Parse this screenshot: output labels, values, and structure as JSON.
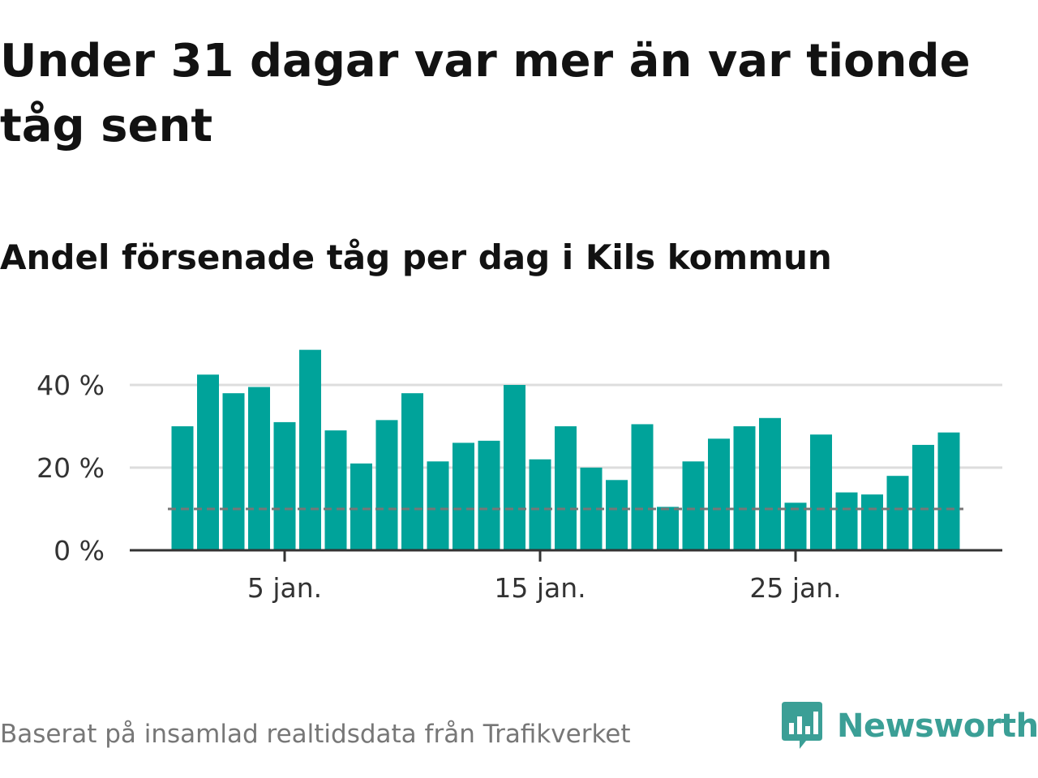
{
  "title": "Under 31 dagar var mer än var tionde tåg sent",
  "subtitle": "Andel försenade tåg per dag i Kils kommun",
  "footer": {
    "source": "Baserat på insamlad realtidsdata från Trafikverket",
    "brand": "Newsworthy"
  },
  "colors": {
    "bar": "#00a39a",
    "threshold": "#777777",
    "grid": "#dddddd",
    "axis": "#333333",
    "brand": "#3b9f96"
  },
  "icons": {
    "brand_logo": "newsworthy-chart-bubble-icon"
  },
  "chart_data": {
    "type": "bar",
    "x": [
      1,
      2,
      3,
      4,
      5,
      6,
      7,
      8,
      9,
      10,
      11,
      12,
      13,
      14,
      15,
      16,
      17,
      18,
      19,
      20,
      21,
      22,
      23,
      24,
      25,
      26,
      27,
      28,
      29,
      30,
      31
    ],
    "values": [
      30,
      42.5,
      38,
      39.5,
      31,
      48.5,
      29,
      21,
      31.5,
      38,
      21.5,
      26,
      26.5,
      40,
      22,
      30,
      20,
      17,
      30.5,
      10.5,
      21.5,
      27,
      30,
      32,
      11.5,
      28,
      14,
      13.5,
      18,
      25.5,
      28.5
    ],
    "ylim": [
      0,
      50
    ],
    "yticks": [
      0,
      20,
      40
    ],
    "ytick_labels": [
      "0 %",
      "20 %",
      "40 %"
    ],
    "xticks": [
      5,
      15,
      25
    ],
    "xtick_labels": [
      "5 jan.",
      "15 jan.",
      "25 jan."
    ],
    "threshold": 10,
    "grid": true,
    "legend": "none"
  }
}
